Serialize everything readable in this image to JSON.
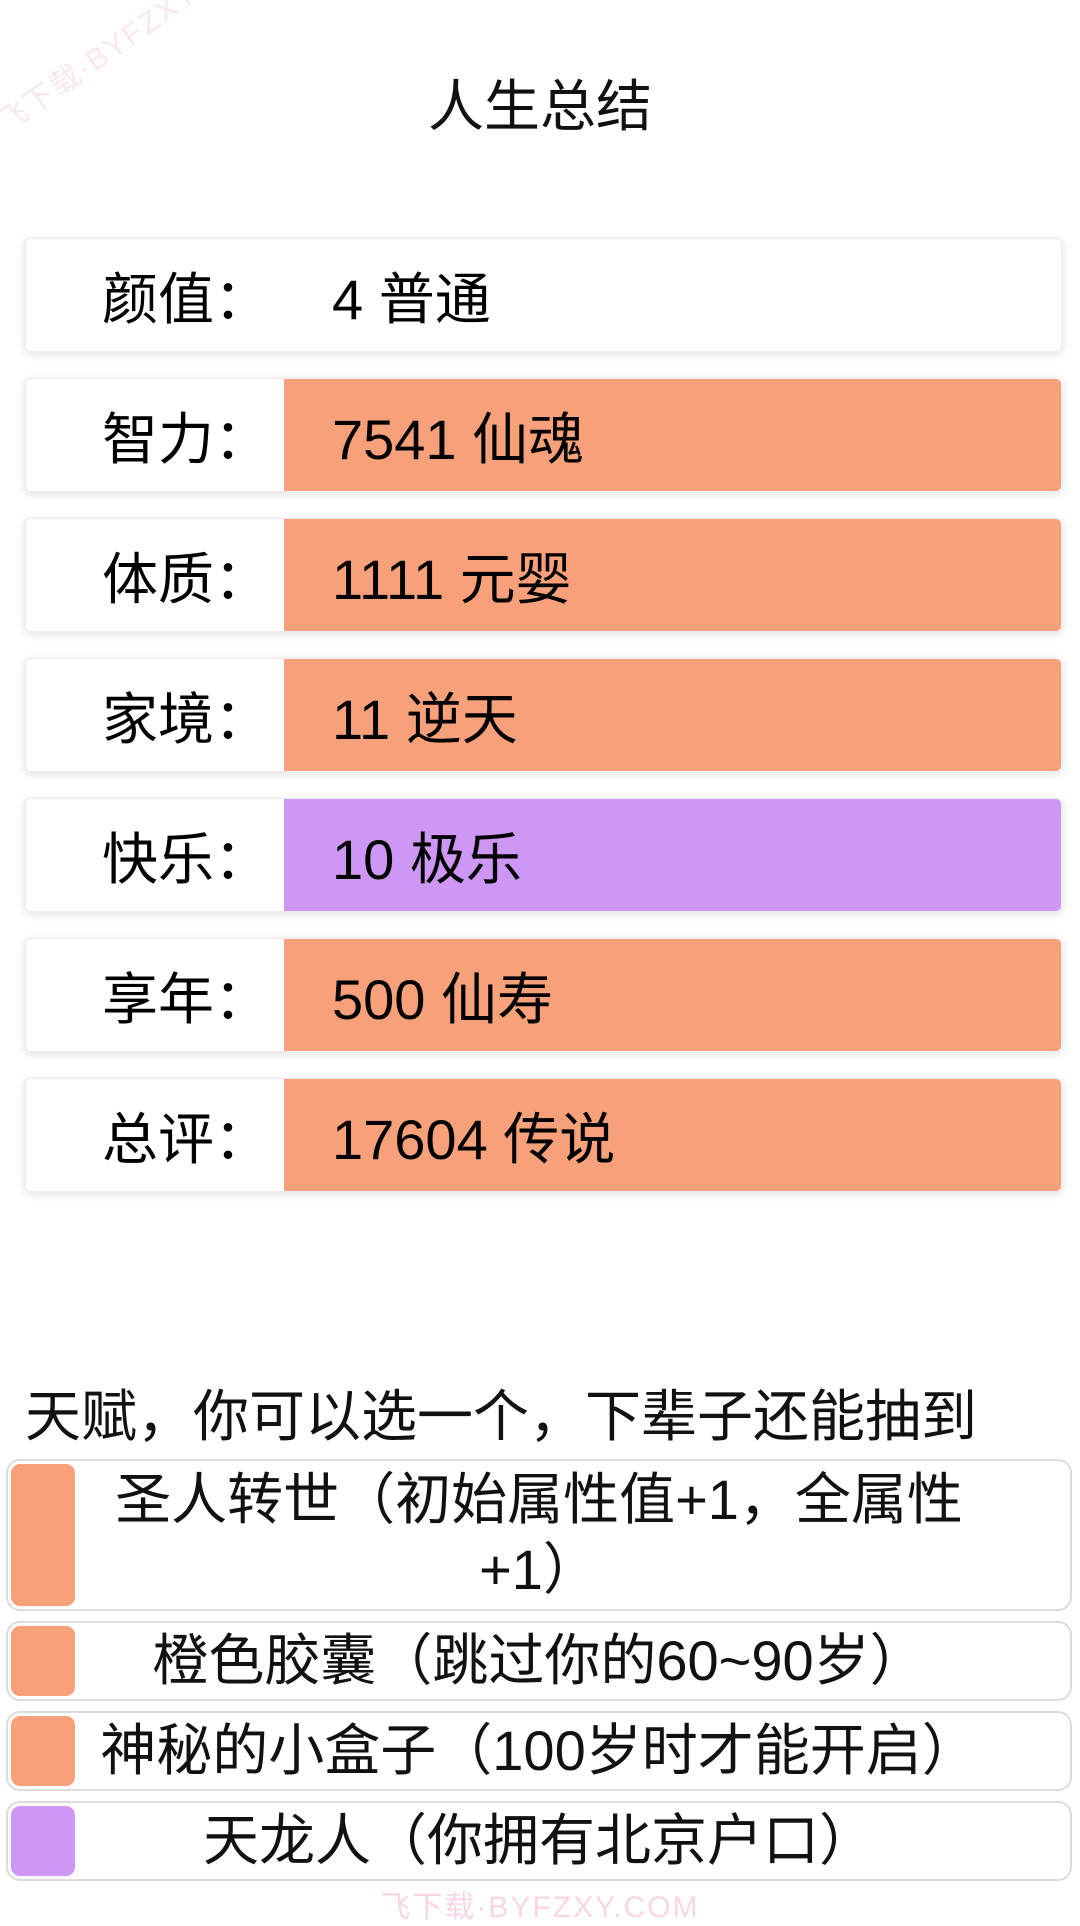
{
  "page": {
    "title": "人生总结"
  },
  "summary": {
    "rows": [
      {
        "label": "颜值：",
        "value": "4 普通",
        "color": "#ffffff"
      },
      {
        "label": "智力：",
        "value": "7541 仙魂",
        "color": "#f7a17a"
      },
      {
        "label": "体质：",
        "value": "1111 元婴",
        "color": "#f7a17a"
      },
      {
        "label": "家境：",
        "value": "11 逆天",
        "color": "#f7a17a"
      },
      {
        "label": "快乐：",
        "value": "10 极乐",
        "color": "#ce97f3"
      },
      {
        "label": "享年：",
        "value": "500 仙寿",
        "color": "#f7a17a"
      },
      {
        "label": "总评：",
        "value": "17604 传说",
        "color": "#f7a17a"
      }
    ]
  },
  "talents": {
    "header": "天赋，你可以选一个，下辈子还能抽到",
    "items": [
      {
        "text": "圣人转世（初始属性值+1，全属性+1）",
        "color": "#f7a17a"
      },
      {
        "text": "橙色胶囊（跳过你的60~90岁）",
        "color": "#f7a17a"
      },
      {
        "text": "神秘的小盒子（100岁时才能开启）",
        "color": "#f7a17a"
      },
      {
        "text": "天龙人（你拥有北京户口）",
        "color": "#ce97f3"
      }
    ]
  },
  "watermark": {
    "text": "飞下载·BYFZXY.COM"
  },
  "colors": {
    "grade_orange": "#f7a17a",
    "grade_purple": "#ce97f3",
    "card_border": "#dcdcdc",
    "watermark_pink": "#f8d6e6"
  }
}
